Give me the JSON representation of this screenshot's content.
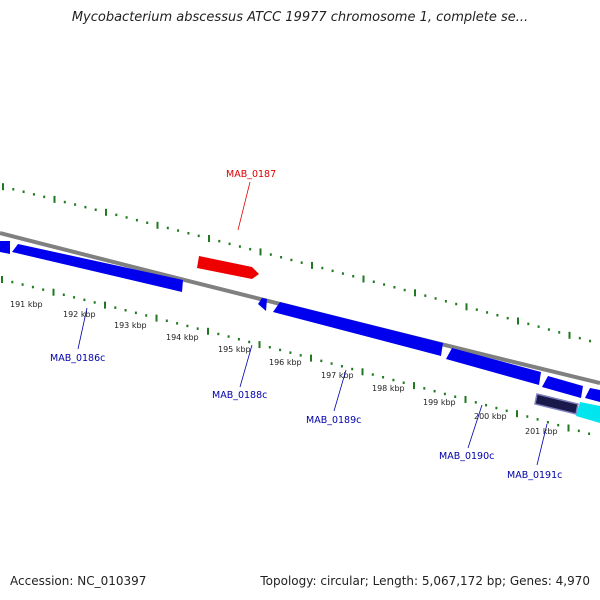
{
  "title": "Mycobacterium abscessus ATCC 19977 chromosome 1, complete se...",
  "footer": {
    "accession": "Accession: NC_010397",
    "summary": "Topology: circular; Length: 5,067,172 bp; Genes: 4,970"
  },
  "colors": {
    "backbone": "#808080",
    "tick": "#1f7a1f",
    "forward_gene": "#ee0000",
    "reverse_gene": "#0000ee",
    "reverse_label": "#0000aa",
    "forward_label": "#dd0000",
    "selected_feature": "#1a1a4a",
    "cyan_feature": "#00e5ee"
  },
  "scale_labels": [
    "191 kbp",
    "192 kbp",
    "193 kbp",
    "194 kbp",
    "195 kbp",
    "196 kbp",
    "197 kbp",
    "198 kbp",
    "199 kbp",
    "200 kbp",
    "201 kbp"
  ],
  "gene_labels": [
    {
      "text": "MAB_0187",
      "strand": "forward"
    },
    {
      "text": "MAB_0186c",
      "strand": "reverse"
    },
    {
      "text": "MAB_0188c",
      "strand": "reverse"
    },
    {
      "text": "MAB_0189c",
      "strand": "reverse"
    },
    {
      "text": "MAB_0190c",
      "strand": "reverse"
    },
    {
      "text": "MAB_0191c",
      "strand": "reverse"
    }
  ]
}
